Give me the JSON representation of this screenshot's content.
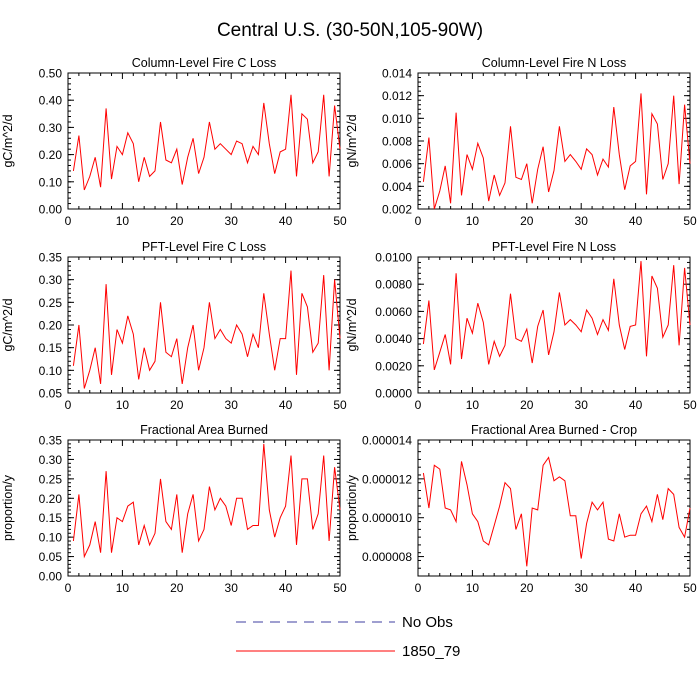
{
  "title": "Central U.S. (30-50N,105-90W)",
  "legend": {
    "placement": "bottom-center",
    "items": [
      {
        "label": "No Obs",
        "color": "#3f3fa0",
        "style": "dashed"
      },
      {
        "label": "1850_79",
        "color": "#ff0000",
        "style": "solid"
      }
    ]
  },
  "chart_data": [
    {
      "type": "line",
      "title": "Column-Level Fire C Loss",
      "ylabel": "gC/m^2/d",
      "xlim": [
        0,
        50
      ],
      "ylim": [
        0.0,
        0.5
      ],
      "xticks": [
        "0",
        "10",
        "20",
        "30",
        "40",
        "50"
      ],
      "yticks": [
        "0.00",
        "0.10",
        "0.20",
        "0.30",
        "0.40",
        "0.50"
      ],
      "x": [
        1,
        2,
        3,
        4,
        5,
        6,
        7,
        8,
        9,
        10,
        11,
        12,
        13,
        14,
        15,
        16,
        17,
        18,
        19,
        20,
        21,
        22,
        23,
        24,
        25,
        26,
        27,
        28,
        29,
        30,
        31,
        32,
        33,
        34,
        35,
        36,
        37,
        38,
        39,
        40,
        41,
        42,
        43,
        44,
        45,
        46,
        47,
        48,
        49,
        50
      ],
      "series": [
        {
          "name": "1850_79",
          "color": "#ff0000",
          "values": [
            0.14,
            0.27,
            0.07,
            0.12,
            0.19,
            0.08,
            0.37,
            0.11,
            0.23,
            0.2,
            0.28,
            0.24,
            0.1,
            0.19,
            0.12,
            0.14,
            0.32,
            0.18,
            0.17,
            0.22,
            0.09,
            0.19,
            0.26,
            0.13,
            0.19,
            0.32,
            0.22,
            0.24,
            0.22,
            0.2,
            0.25,
            0.24,
            0.17,
            0.23,
            0.2,
            0.39,
            0.24,
            0.13,
            0.21,
            0.22,
            0.42,
            0.12,
            0.35,
            0.33,
            0.17,
            0.21,
            0.42,
            0.12,
            0.38,
            0.22
          ]
        }
      ]
    },
    {
      "type": "line",
      "title": "Column-Level Fire N Loss",
      "ylabel": "gN/m^2/d",
      "xlim": [
        0,
        50
      ],
      "ylim": [
        0.002,
        0.014
      ],
      "xticks": [
        "0",
        "10",
        "20",
        "30",
        "40",
        "50"
      ],
      "yticks": [
        "0.002",
        "0.004",
        "0.006",
        "0.008",
        "0.010",
        "0.012",
        "0.014"
      ],
      "x": [
        1,
        2,
        3,
        4,
        5,
        6,
        7,
        8,
        9,
        10,
        11,
        12,
        13,
        14,
        15,
        16,
        17,
        18,
        19,
        20,
        21,
        22,
        23,
        24,
        25,
        26,
        27,
        28,
        29,
        30,
        31,
        32,
        33,
        34,
        35,
        36,
        37,
        38,
        39,
        40,
        41,
        42,
        43,
        44,
        45,
        46,
        47,
        48,
        49,
        50
      ],
      "series": [
        {
          "name": "1850_79",
          "color": "#ff0000",
          "values": [
            0.0044,
            0.0083,
            0.002,
            0.0036,
            0.0058,
            0.0025,
            0.0105,
            0.0032,
            0.0068,
            0.0055,
            0.0078,
            0.0065,
            0.0027,
            0.005,
            0.0032,
            0.0043,
            0.0093,
            0.0048,
            0.0046,
            0.006,
            0.0025,
            0.0055,
            0.0075,
            0.0035,
            0.0054,
            0.0093,
            0.0062,
            0.0068,
            0.0062,
            0.0055,
            0.0073,
            0.0068,
            0.005,
            0.0064,
            0.0057,
            0.011,
            0.0068,
            0.0037,
            0.0058,
            0.0062,
            0.0122,
            0.0033,
            0.0104,
            0.0095,
            0.0046,
            0.006,
            0.012,
            0.0042,
            0.0112,
            0.006
          ]
        }
      ]
    },
    {
      "type": "line",
      "title": "PFT-Level Fire C Loss",
      "ylabel": "gC/m^2/d",
      "xlim": [
        0,
        50
      ],
      "ylim": [
        0.05,
        0.35
      ],
      "xticks": [
        "0",
        "10",
        "20",
        "30",
        "40",
        "50"
      ],
      "yticks": [
        "0.05",
        "0.10",
        "0.15",
        "0.20",
        "0.25",
        "0.30",
        "0.35"
      ],
      "x": [
        1,
        2,
        3,
        4,
        5,
        6,
        7,
        8,
        9,
        10,
        11,
        12,
        13,
        14,
        15,
        16,
        17,
        18,
        19,
        20,
        21,
        22,
        23,
        24,
        25,
        26,
        27,
        28,
        29,
        30,
        31,
        32,
        33,
        34,
        35,
        36,
        37,
        38,
        39,
        40,
        41,
        42,
        43,
        44,
        45,
        46,
        47,
        48,
        49,
        50
      ],
      "series": [
        {
          "name": "1850_79",
          "color": "#ff0000",
          "values": [
            0.11,
            0.2,
            0.06,
            0.1,
            0.15,
            0.07,
            0.29,
            0.09,
            0.19,
            0.16,
            0.22,
            0.18,
            0.08,
            0.15,
            0.1,
            0.12,
            0.25,
            0.14,
            0.13,
            0.17,
            0.07,
            0.15,
            0.2,
            0.1,
            0.15,
            0.25,
            0.17,
            0.19,
            0.17,
            0.16,
            0.2,
            0.18,
            0.13,
            0.18,
            0.15,
            0.27,
            0.18,
            0.1,
            0.17,
            0.17,
            0.32,
            0.09,
            0.27,
            0.24,
            0.14,
            0.16,
            0.31,
            0.1,
            0.3,
            0.17
          ]
        }
      ]
    },
    {
      "type": "line",
      "title": "PFT-Level Fire N Loss",
      "ylabel": "gN/m^2/d",
      "xlim": [
        0,
        50
      ],
      "ylim": [
        0.0,
        0.01
      ],
      "xticks": [
        "0",
        "10",
        "20",
        "30",
        "40",
        "50"
      ],
      "yticks": [
        "0.0000",
        "0.0020",
        "0.0040",
        "0.0060",
        "0.0080",
        "0.0100"
      ],
      "x": [
        1,
        2,
        3,
        4,
        5,
        6,
        7,
        8,
        9,
        10,
        11,
        12,
        13,
        14,
        15,
        16,
        17,
        18,
        19,
        20,
        21,
        22,
        23,
        24,
        25,
        26,
        27,
        28,
        29,
        30,
        31,
        32,
        33,
        34,
        35,
        36,
        37,
        38,
        39,
        40,
        41,
        42,
        43,
        44,
        45,
        46,
        47,
        48,
        49,
        50
      ],
      "series": [
        {
          "name": "1850_79",
          "color": "#ff0000",
          "values": [
            0.0036,
            0.0068,
            0.0017,
            0.003,
            0.0043,
            0.0021,
            0.0088,
            0.0025,
            0.0055,
            0.0044,
            0.0066,
            0.0052,
            0.0021,
            0.0038,
            0.0027,
            0.0035,
            0.0073,
            0.004,
            0.0038,
            0.0047,
            0.0022,
            0.0049,
            0.0061,
            0.0028,
            0.0045,
            0.0074,
            0.005,
            0.0054,
            0.005,
            0.0045,
            0.0061,
            0.0055,
            0.0043,
            0.0054,
            0.0046,
            0.0084,
            0.005,
            0.0032,
            0.0049,
            0.005,
            0.0097,
            0.0027,
            0.0086,
            0.0077,
            0.0041,
            0.005,
            0.0094,
            0.0035,
            0.0092,
            0.005
          ]
        }
      ]
    },
    {
      "type": "line",
      "title": "Fractional Area Burned",
      "ylabel": "proportion/y",
      "xlim": [
        0,
        50
      ],
      "ylim": [
        0.0,
        0.35
      ],
      "xticks": [
        "0",
        "10",
        "20",
        "30",
        "40",
        "50"
      ],
      "yticks": [
        "0.00",
        "0.05",
        "0.10",
        "0.15",
        "0.20",
        "0.25",
        "0.30",
        "0.35"
      ],
      "x": [
        1,
        2,
        3,
        4,
        5,
        6,
        7,
        8,
        9,
        10,
        11,
        12,
        13,
        14,
        15,
        16,
        17,
        18,
        19,
        20,
        21,
        22,
        23,
        24,
        25,
        26,
        27,
        28,
        29,
        30,
        31,
        32,
        33,
        34,
        35,
        36,
        37,
        38,
        39,
        40,
        41,
        42,
        43,
        44,
        45,
        46,
        47,
        48,
        49,
        50
      ],
      "series": [
        {
          "name": "1850_79",
          "color": "#ff0000",
          "values": [
            0.09,
            0.21,
            0.05,
            0.08,
            0.14,
            0.06,
            0.27,
            0.06,
            0.15,
            0.14,
            0.18,
            0.19,
            0.08,
            0.13,
            0.08,
            0.11,
            0.25,
            0.14,
            0.12,
            0.21,
            0.06,
            0.16,
            0.21,
            0.09,
            0.12,
            0.23,
            0.17,
            0.2,
            0.18,
            0.13,
            0.2,
            0.2,
            0.12,
            0.13,
            0.13,
            0.34,
            0.17,
            0.1,
            0.15,
            0.18,
            0.31,
            0.08,
            0.25,
            0.25,
            0.12,
            0.16,
            0.31,
            0.09,
            0.28,
            0.17
          ]
        }
      ]
    },
    {
      "type": "line",
      "title": "Fractional Area Burned - Crop",
      "ylabel": "proportion/y",
      "xlim": [
        0,
        50
      ],
      "ylim": [
        7e-06,
        1.4e-05
      ],
      "xticks": [
        "0",
        "10",
        "20",
        "30",
        "40",
        "50"
      ],
      "yticks": [
        "0.000008",
        "0.000010",
        "0.000012",
        "0.000014"
      ],
      "x": [
        1,
        2,
        3,
        4,
        5,
        6,
        7,
        8,
        9,
        10,
        11,
        12,
        13,
        14,
        15,
        16,
        17,
        18,
        19,
        20,
        21,
        22,
        23,
        24,
        25,
        26,
        27,
        28,
        29,
        30,
        31,
        32,
        33,
        34,
        35,
        36,
        37,
        38,
        39,
        40,
        41,
        42,
        43,
        44,
        45,
        46,
        47,
        48,
        49,
        50
      ],
      "series": [
        {
          "name": "1850_79",
          "color": "#ff0000",
          "values": [
            1.23e-05,
            1.05e-05,
            1.27e-05,
            1.25e-05,
            1.05e-05,
            1.04e-05,
            9.8e-06,
            1.29e-05,
            1.17e-05,
            1.02e-05,
            9.8e-06,
            8.8e-06,
            8.6e-06,
            9.6e-06,
            1.06e-05,
            1.18e-05,
            1.15e-05,
            9.4e-06,
            1.02e-05,
            7.5e-06,
            1.05e-05,
            1.04e-05,
            1.27e-05,
            1.31e-05,
            1.19e-05,
            1.21e-05,
            1.19e-05,
            1.01e-05,
            1.01e-05,
            7.9e-06,
            9.7e-06,
            1.08e-05,
            1.04e-05,
            1.08e-05,
            8.9e-06,
            8.8e-06,
            1.02e-05,
            9e-06,
            9.1e-06,
            9.1e-06,
            1.02e-05,
            1.06e-05,
            9.8e-06,
            1.12e-05,
            9.9e-06,
            1.15e-05,
            1.12e-05,
            9.5e-06,
            9e-06,
            1.05e-05
          ]
        }
      ]
    }
  ]
}
